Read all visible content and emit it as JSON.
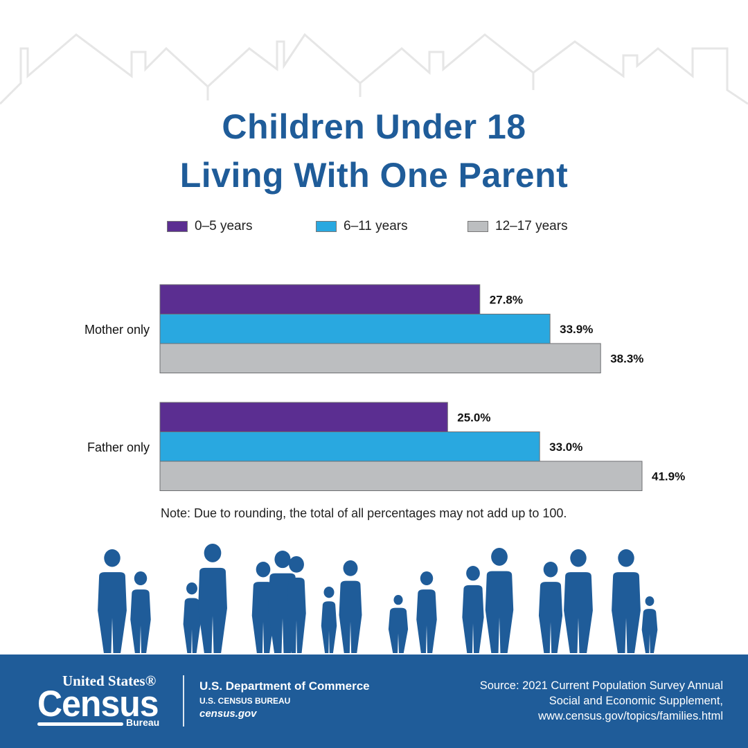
{
  "title_lines": [
    "Children Under 18",
    "Living With One Parent"
  ],
  "legend": [
    {
      "label": "0–5 years",
      "color": "#5b2e91"
    },
    {
      "label": "6–11 years",
      "color": "#29a8e0"
    },
    {
      "label": "12–17 years",
      "color": "#bcbec0"
    }
  ],
  "chart_data": {
    "type": "bar",
    "orientation": "horizontal",
    "categories": [
      "Mother only",
      "Father only"
    ],
    "series": [
      {
        "name": "0–5 years",
        "values": [
          27.8,
          25.0
        ],
        "labels": [
          "27.8%",
          "25.0%"
        ],
        "color": "#5b2e91"
      },
      {
        "name": "6–11 years",
        "values": [
          33.9,
          33.0
        ],
        "labels": [
          "33.9%",
          "33.0%"
        ],
        "color": "#29a8e0"
      },
      {
        "name": "12–17 years",
        "values": [
          38.3,
          41.9
        ],
        "labels": [
          "38.3%",
          "41.9%"
        ],
        "color": "#bcbec0"
      }
    ],
    "xlim": [
      0,
      41.9
    ],
    "grid": false,
    "legend_position": "top"
  },
  "note": "Note: Due to rounding, the total of all percentages may not add up to 100.",
  "footer": {
    "logo": {
      "line1": "United States®",
      "line2": "Census",
      "line3": "Bureau"
    },
    "dept": "U.S. Department of Commerce",
    "bureau": "U.S. CENSUS BUREAU",
    "site": "census.gov",
    "source_lines": [
      "Source: 2021 Current Population Survey Annual",
      "Social and Economic Supplement,",
      "www.census.gov/topics/families.html"
    ],
    "color": "#1f5c99"
  },
  "colors": {
    "title": "#1f5c99",
    "silhouette": "#1f5c99",
    "roofline": "#e4e4e4"
  }
}
